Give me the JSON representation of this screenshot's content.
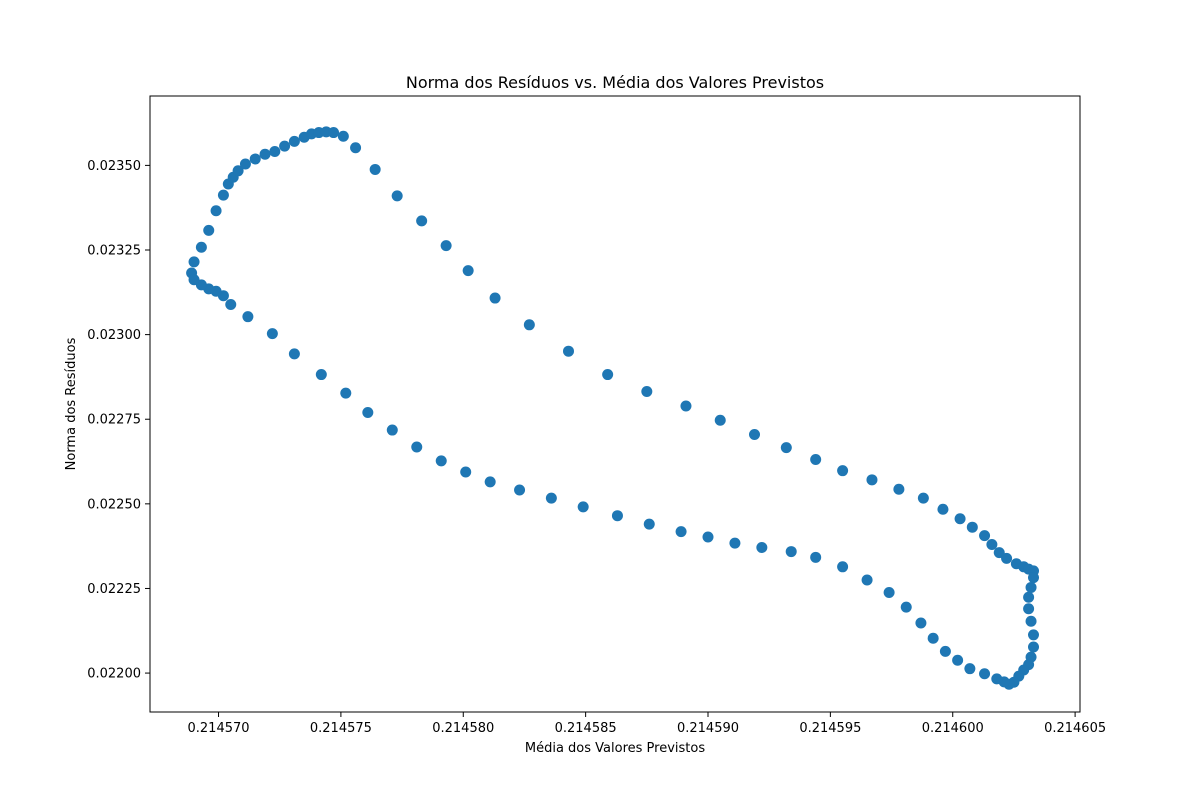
{
  "chart_data": {
    "type": "scatter",
    "title": "Norma dos Resíduos vs. Média dos Valores Previstos",
    "xlabel": "Média dos Valores Previstos",
    "ylabel": "Norma dos Resíduos",
    "xlim": [
      0.2145672,
      0.2146052
    ],
    "ylim": [
      0.021885,
      0.023705
    ],
    "xticks": [
      0.21457,
      0.214575,
      0.21458,
      0.214585,
      0.21459,
      0.214595,
      0.2146,
      0.214605
    ],
    "xtick_labels": [
      "0.214570",
      "0.214575",
      "0.214580",
      "0.214585",
      "0.214590",
      "0.214595",
      "0.214600",
      "0.214605"
    ],
    "yticks": [
      0.022,
      0.02225,
      0.0225,
      0.02275,
      0.023,
      0.02325,
      0.0235
    ],
    "ytick_labels": [
      "0.02200",
      "0.02225",
      "0.02250",
      "0.02275",
      "0.02300",
      "0.02325",
      "0.02350"
    ],
    "grid": false,
    "marker_color": "#1f77b4",
    "points": [
      [
        0.2145689,
        0.023182
      ],
      [
        0.214569,
        0.023215
      ],
      [
        0.2145693,
        0.023258
      ],
      [
        0.2145696,
        0.023308
      ],
      [
        0.2145699,
        0.023366
      ],
      [
        0.2145702,
        0.023412
      ],
      [
        0.2145704,
        0.023445
      ],
      [
        0.2145706,
        0.023465
      ],
      [
        0.2145708,
        0.023484
      ],
      [
        0.2145711,
        0.023504
      ],
      [
        0.2145715,
        0.023519
      ],
      [
        0.2145719,
        0.023533
      ],
      [
        0.2145723,
        0.023541
      ],
      [
        0.2145727,
        0.023557
      ],
      [
        0.2145731,
        0.023571
      ],
      [
        0.2145735,
        0.023583
      ],
      [
        0.2145738,
        0.023593
      ],
      [
        0.2145741,
        0.023597
      ],
      [
        0.2145744,
        0.023599
      ],
      [
        0.2145747,
        0.023597
      ],
      [
        0.2145751,
        0.023586
      ],
      [
        0.2145756,
        0.023552
      ],
      [
        0.2145764,
        0.023488
      ],
      [
        0.2145773,
        0.02341
      ],
      [
        0.2145783,
        0.023336
      ],
      [
        0.2145793,
        0.023263
      ],
      [
        0.2145802,
        0.023189
      ],
      [
        0.2145813,
        0.023108
      ],
      [
        0.2145827,
        0.023029
      ],
      [
        0.2145843,
        0.022951
      ],
      [
        0.2145859,
        0.022882
      ],
      [
        0.2145875,
        0.022832
      ],
      [
        0.2145891,
        0.022789
      ],
      [
        0.2145905,
        0.022747
      ],
      [
        0.2145919,
        0.022705
      ],
      [
        0.2145932,
        0.022666
      ],
      [
        0.2145944,
        0.022631
      ],
      [
        0.2145955,
        0.022598
      ],
      [
        0.2145967,
        0.022571
      ],
      [
        0.2145978,
        0.022543
      ],
      [
        0.2145988,
        0.022517
      ],
      [
        0.2145996,
        0.022484
      ],
      [
        0.2146003,
        0.022456
      ],
      [
        0.2146008,
        0.022431
      ],
      [
        0.2146013,
        0.022406
      ],
      [
        0.2146016,
        0.02238
      ],
      [
        0.2146019,
        0.022356
      ],
      [
        0.2146022,
        0.022339
      ],
      [
        0.2146026,
        0.022323
      ],
      [
        0.2146029,
        0.022314
      ],
      [
        0.2146031,
        0.022307
      ],
      [
        0.2146033,
        0.022302
      ],
      [
        0.2146033,
        0.022282
      ],
      [
        0.2146032,
        0.022253
      ],
      [
        0.2146031,
        0.022224
      ],
      [
        0.2146031,
        0.02219
      ],
      [
        0.2146032,
        0.022153
      ],
      [
        0.2146033,
        0.022113
      ],
      [
        0.2146033,
        0.022077
      ],
      [
        0.2146032,
        0.022047
      ],
      [
        0.2146031,
        0.022025
      ],
      [
        0.2146029,
        0.022009
      ],
      [
        0.2146027,
        0.021991
      ],
      [
        0.2146025,
        0.021973
      ],
      [
        0.2146023,
        0.021967
      ],
      [
        0.2146021,
        0.021974
      ],
      [
        0.2146018,
        0.021983
      ],
      [
        0.2146013,
        0.021998
      ],
      [
        0.2146007,
        0.022013
      ],
      [
        0.2146002,
        0.022038
      ],
      [
        0.2145997,
        0.022064
      ],
      [
        0.2145992,
        0.022103
      ],
      [
        0.2145987,
        0.022148
      ],
      [
        0.2145981,
        0.022195
      ],
      [
        0.2145974,
        0.022238
      ],
      [
        0.2145965,
        0.022275
      ],
      [
        0.2145955,
        0.022314
      ],
      [
        0.2145944,
        0.022342
      ],
      [
        0.2145934,
        0.022359
      ],
      [
        0.2145922,
        0.022371
      ],
      [
        0.2145911,
        0.022384
      ],
      [
        0.21459,
        0.022402
      ],
      [
        0.2145889,
        0.022418
      ],
      [
        0.2145876,
        0.02244
      ],
      [
        0.2145863,
        0.022465
      ],
      [
        0.2145849,
        0.022491
      ],
      [
        0.2145836,
        0.022517
      ],
      [
        0.2145823,
        0.022541
      ],
      [
        0.2145811,
        0.022565
      ],
      [
        0.2145801,
        0.022594
      ],
      [
        0.2145791,
        0.022627
      ],
      [
        0.2145781,
        0.022668
      ],
      [
        0.2145771,
        0.022718
      ],
      [
        0.2145761,
        0.02277
      ],
      [
        0.2145752,
        0.022827
      ],
      [
        0.2145742,
        0.022882
      ],
      [
        0.2145731,
        0.022943
      ],
      [
        0.2145722,
        0.023003
      ],
      [
        0.2145712,
        0.023053
      ],
      [
        0.2145705,
        0.023089
      ],
      [
        0.2145702,
        0.023115
      ],
      [
        0.2145699,
        0.023128
      ],
      [
        0.2145696,
        0.023135
      ],
      [
        0.2145693,
        0.023147
      ],
      [
        0.214569,
        0.023162
      ]
    ]
  }
}
